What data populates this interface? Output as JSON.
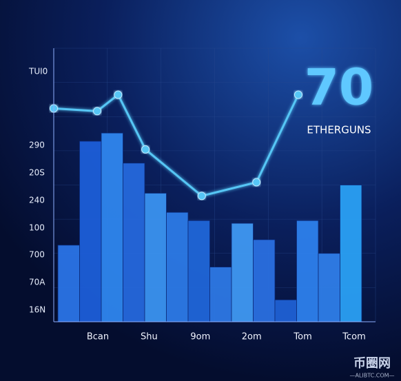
{
  "chart_data": [
    {
      "type": "bar",
      "categories": [
        null,
        null,
        null,
        null,
        null,
        null,
        null,
        null,
        null,
        null,
        null,
        null,
        null,
        null
      ],
      "values": [
        28,
        66,
        69,
        58,
        47,
        40,
        37,
        20,
        36,
        30,
        8,
        37,
        25,
        50
      ],
      "color": "#2f7de8",
      "ylim": [
        0,
        100
      ],
      "y_labels": [
        "TUI0",
        "290",
        "20S",
        "240",
        "100",
        "700",
        "70A",
        "16N"
      ],
      "x_labels": [
        "Bcan",
        "Shu",
        "9om",
        "2om",
        "Tom",
        "Tcom"
      ],
      "annotations": [
        "70",
        "ETHERGUNS"
      ],
      "grid": true
    },
    {
      "type": "line",
      "x": [
        0,
        13.5,
        20,
        28.5,
        46,
        63,
        76
      ],
      "values": [
        78,
        77,
        83,
        63,
        46,
        51,
        83
      ],
      "color": "#56c6f5",
      "xlim": [
        0,
        100
      ],
      "ylim": [
        0,
        100
      ]
    }
  ],
  "watermark": {
    "title": "币圈网",
    "url": "—ALIBTC.COM—"
  }
}
